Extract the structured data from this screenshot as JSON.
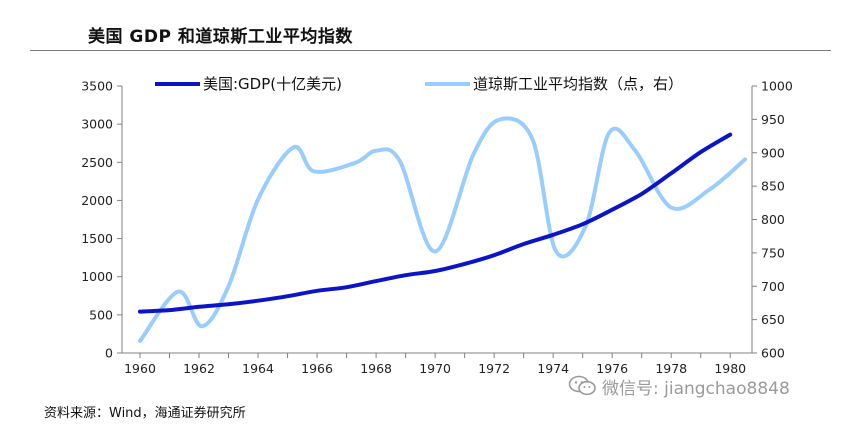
{
  "header": {
    "title": "美国 GDP 和道琼斯工业平均指数"
  },
  "source": "资料来源：Wind，海通证券研究所",
  "watermark": {
    "text": "微信号: jiangchao8848",
    "icon": "wechat-icon"
  },
  "colors": {
    "gdp": "#0b15c7",
    "dow": "#99ccff",
    "axis": "#808080"
  },
  "chart_data": {
    "type": "line",
    "title": "美国 GDP 和道琼斯工业平均指数",
    "grid": false,
    "legend_placement": "top",
    "x_ticks": [
      "1960",
      "1962",
      "1964",
      "1966",
      "1968",
      "1970",
      "1972",
      "1974",
      "1976",
      "1978",
      "1980"
    ],
    "xlim": [
      1960,
      1980.5
    ],
    "y_left": {
      "range": [
        0,
        3500
      ],
      "ticks": [
        "0",
        "500",
        "1000",
        "1500",
        "2000",
        "2500",
        "3000",
        "3500"
      ]
    },
    "y_right": {
      "range": [
        600,
        1000
      ],
      "ticks": [
        "600",
        "650",
        "700",
        "750",
        "800",
        "850",
        "900",
        "950",
        "1000"
      ]
    },
    "series": [
      {
        "name": "美国:GDP(十亿美元)",
        "axis": "left",
        "x": [
          1960,
          1961,
          1962,
          1963,
          1964,
          1965,
          1966,
          1967,
          1968,
          1969,
          1970,
          1971,
          1972,
          1973,
          1974,
          1975,
          1976,
          1977,
          1978,
          1979,
          1980
        ],
        "y": [
          543,
          563,
          605,
          639,
          686,
          744,
          815,
          862,
          943,
          1020,
          1075,
          1168,
          1282,
          1429,
          1549,
          1689,
          1878,
          2086,
          2356,
          2633,
          2863
        ]
      },
      {
        "name": "道琼斯工业平均指数（点，右）",
        "axis": "right",
        "x": [
          1960,
          1961.3,
          1962.1,
          1963,
          1964,
          1965.2,
          1965.9,
          1967.3,
          1968,
          1968.8,
          1970,
          1971.3,
          1972.2,
          1973.3,
          1974.1,
          1975.1,
          1975.9,
          1976.8,
          1978,
          1979.3,
          1980.5
        ],
        "y": [
          618,
          692,
          640,
          700,
          830,
          908,
          872,
          885,
          903,
          888,
          752,
          898,
          950,
          920,
          752,
          790,
          930,
          902,
          818,
          845,
          890
        ]
      }
    ]
  }
}
